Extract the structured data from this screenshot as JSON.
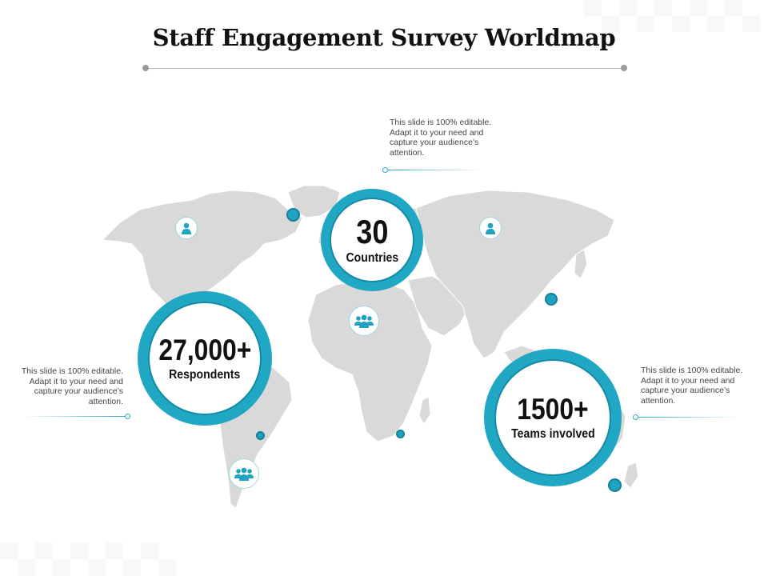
{
  "title": "Staff Engagement  Survey Worldmap",
  "colors": {
    "accent": "#20a7c3",
    "accent_dark": "#168aa4",
    "map_fill": "#d9d9d9",
    "text": "#111111"
  },
  "stats": [
    {
      "value": "30",
      "label": "Countries"
    },
    {
      "value": "27,000+",
      "label": "Respondents"
    },
    {
      "value": "1500+",
      "label": "Teams involved"
    }
  ],
  "notes": {
    "top": "This slide is 100% editable. Adapt it to your need and capture your audience’s attention.",
    "left": "This slide is 100% editable. Adapt it to your need and capture your audience’s attention.",
    "right": "This slide is 100% editable. Adapt it to your need and capture your audience’s attention."
  },
  "icons": {
    "single_person": "person-icon",
    "group": "group-icon"
  }
}
